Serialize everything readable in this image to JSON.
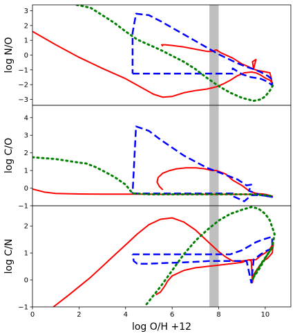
{
  "chart_data": [
    {
      "type": "line",
      "ylabel": "log N/O",
      "xlim": [
        0,
        11.1
      ],
      "ylim": [
        -3.4,
        3.4
      ],
      "yticks": [
        -3,
        -2,
        -1,
        0,
        1,
        2,
        3
      ],
      "band": {
        "x": [
          7.6,
          8.0
        ],
        "color": "#bfbfbf"
      },
      "series": [
        {
          "color": "#ff0000",
          "style": "solid",
          "x": [
            0,
            1,
            2,
            3,
            4,
            4.8,
            5.2,
            5.6,
            6.0,
            6.5,
            7.0,
            7.5,
            7.9,
            8.2,
            8.5,
            8.8,
            9.1,
            9.4,
            9.6,
            9.8,
            10.0,
            10.2,
            10.3,
            10.2,
            9.9,
            9.7,
            9.5,
            9.6,
            9.45,
            9.5,
            9.3,
            9.0,
            8.6,
            8.1,
            7.9,
            7.7,
            7.5,
            7.0,
            6.5,
            6.0,
            5.7,
            5.55,
            5.6
          ],
          "y": [
            1.6,
            0.7,
            -0.15,
            -0.9,
            -1.6,
            -2.3,
            -2.65,
            -2.85,
            -2.8,
            -2.55,
            -2.4,
            -2.3,
            -2.15,
            -1.95,
            -1.7,
            -1.4,
            -1.2,
            -1.15,
            -1.2,
            -1.35,
            -1.55,
            -1.7,
            -1.9,
            -1.2,
            -1.1,
            -1.05,
            -0.95,
            -0.3,
            -0.45,
            -0.95,
            -0.8,
            -0.6,
            -0.2,
            0.15,
            0.35,
            0.25,
            0.25,
            0.4,
            0.55,
            0.65,
            0.7,
            0.7,
            0.6
          ]
        },
        {
          "color": "#0000ff",
          "style": "dashed",
          "x": [
            4.3,
            4.35,
            4.45,
            5.0,
            6.0,
            7.0,
            8.0,
            8.6,
            8.6,
            9.0,
            9.4,
            9.8,
            10.1,
            10.3,
            10.3,
            10.1,
            9.8,
            9.5,
            9.2,
            8.8,
            8.4,
            8.0,
            7.5,
            7.0,
            6.5,
            6.0,
            5.5,
            5.0,
            4.45,
            4.3,
            4.3,
            4.3
          ],
          "y": [
            -1.25,
            -1.25,
            -1.25,
            -1.25,
            -1.25,
            -1.25,
            -1.25,
            -1.25,
            -0.9,
            -1.3,
            -1.5,
            -1.6,
            -1.8,
            -2.05,
            -1.65,
            -1.4,
            -1.15,
            -0.95,
            -0.8,
            -0.55,
            -0.25,
            0.05,
            0.5,
            0.95,
            1.4,
            1.85,
            2.3,
            2.7,
            2.8,
            1.5,
            0.0,
            -1.25
          ]
        },
        {
          "color": "#008000",
          "style": "dotted",
          "x": [
            1.9,
            2.5,
            3.0,
            3.5,
            4.0,
            4.5,
            5.0,
            5.5,
            6.0,
            6.5,
            7.0,
            7.5,
            8.0,
            8.5,
            9.0,
            9.5,
            9.8,
            10.0,
            10.2,
            10.35
          ],
          "y": [
            3.4,
            3.2,
            2.7,
            2.2,
            1.6,
            1.05,
            0.7,
            0.35,
            -0.05,
            -0.45,
            -0.95,
            -1.55,
            -2.1,
            -2.55,
            -2.9,
            -3.1,
            -3.0,
            -2.8,
            -2.4,
            -2.0
          ]
        }
      ]
    },
    {
      "type": "line",
      "ylabel": "log C/O",
      "xlim": [
        0,
        11.1
      ],
      "ylim": [
        -1.0,
        4.7
      ],
      "yticks": [
        -1,
        0,
        1,
        2,
        3,
        4
      ],
      "band": {
        "x": [
          7.6,
          8.0
        ],
        "color": "#bfbfbf"
      },
      "series": [
        {
          "color": "#ff0000",
          "style": "solid",
          "x": [
            0,
            0.5,
            1,
            2,
            3,
            4,
            4.5,
            5.0,
            5.5,
            6,
            6.5,
            7,
            7.5,
            8,
            8.5,
            9,
            9.5,
            10,
            10.3,
            10.0,
            9.6,
            9.3,
            9.0,
            8.6,
            8.3,
            7.9,
            7.7,
            7.4,
            7.0,
            6.6,
            6.2,
            5.9,
            5.6,
            5.4,
            5.35,
            5.45,
            5.6
          ],
          "y": [
            -0.05,
            -0.22,
            -0.3,
            -0.33,
            -0.34,
            -0.34,
            -0.34,
            -0.34,
            -0.35,
            -0.35,
            -0.35,
            -0.35,
            -0.35,
            -0.35,
            -0.35,
            -0.35,
            -0.35,
            -0.4,
            -0.45,
            -0.35,
            -0.3,
            -0.15,
            0.15,
            0.45,
            0.8,
            1.0,
            1.0,
            1.1,
            1.15,
            1.15,
            1.1,
            1.0,
            0.85,
            0.6,
            0.35,
            0.1,
            -0.1
          ]
        },
        {
          "color": "#0000ff",
          "style": "dashed",
          "x": [
            4.3,
            4.45,
            5.0,
            6.0,
            7.0,
            7.8,
            8.6,
            8.6,
            9.1,
            9.4,
            9.8,
            10.1,
            10.3,
            9.8,
            9.6,
            9.3,
            9.4,
            9.2,
            8.8,
            8.3,
            7.5,
            6.5,
            5.5,
            5.0,
            4.45,
            4.3
          ],
          "y": [
            -0.3,
            -0.3,
            -0.3,
            -0.3,
            -0.3,
            -0.3,
            -0.3,
            -0.45,
            -0.75,
            -0.4,
            -0.4,
            -0.45,
            -0.5,
            -0.4,
            -0.3,
            -0.15,
            0.2,
            0.15,
            0.5,
            0.75,
            1.15,
            1.85,
            2.75,
            3.25,
            3.5,
            -0.3
          ]
        },
        {
          "color": "#008000",
          "style": "dotted",
          "x": [
            0,
            0.5,
            1,
            1.5,
            2,
            2.3,
            2.7,
            3,
            3.5,
            4,
            4.3,
            5,
            6,
            7,
            8,
            9,
            9.5,
            10,
            10.3
          ],
          "y": [
            1.75,
            1.7,
            1.65,
            1.55,
            1.45,
            1.4,
            1.2,
            1.0,
            0.65,
            0.2,
            -0.3,
            -0.35,
            -0.35,
            -0.35,
            -0.35,
            -0.35,
            -0.35,
            -0.4,
            -0.45
          ]
        }
      ]
    },
    {
      "type": "line",
      "ylabel": "log C/N",
      "xlim": [
        0,
        11.1
      ],
      "ylim": [
        -1.0,
        2.75
      ],
      "yticks": [
        -1,
        0,
        1,
        2
      ],
      "band": {
        "x": [
          7.6,
          8.0
        ],
        "color": "#bfbfbf"
      },
      "series": [
        {
          "color": "#ff0000",
          "style": "solid",
          "x": [
            0.9,
            1.5,
            2.0,
            2.5,
            3.0,
            3.5,
            4.0,
            4.5,
            5.0,
            5.5,
            6.0,
            6.5,
            7.0,
            7.5,
            8.0,
            8.3,
            8.6,
            9.0,
            9.4,
            9.6,
            9.8,
            10.0,
            10.2,
            10.35,
            10.3,
            10.1,
            9.9,
            9.7,
            9.5,
            9.45,
            9.4,
            9.3,
            9.0,
            8.5,
            8.0,
            7.5,
            7.0,
            6.5,
            6.0,
            5.8,
            5.7,
            5.5,
            5.4,
            5.3
          ],
          "y": [
            -1.0,
            -0.6,
            -0.25,
            0.1,
            0.5,
            0.9,
            1.3,
            1.7,
            2.05,
            2.25,
            2.3,
            2.15,
            1.85,
            1.45,
            1.05,
            0.85,
            0.7,
            0.7,
            0.75,
            0.75,
            0.9,
            1.0,
            1.15,
            1.35,
            1.0,
            0.8,
            0.7,
            0.45,
            0.2,
            -0.1,
            0.7,
            0.75,
            0.65,
            0.6,
            0.55,
            0.5,
            0.45,
            0.35,
            0.15,
            -0.05,
            -0.2,
            -0.45,
            -0.5,
            -0.55
          ]
        },
        {
          "color": "#0000ff",
          "style": "dashed",
          "x": [
            4.3,
            4.45,
            5.0,
            6.0,
            7.0,
            7.5,
            8.0,
            8.5,
            9.0,
            9.3,
            9.6,
            9.9,
            10.1,
            10.3,
            10.3,
            10.1,
            9.8,
            9.5,
            9.4,
            9.2,
            8.8,
            8.3,
            7.6,
            6.5,
            5.5,
            5.0,
            4.5,
            4.35,
            4.3
          ],
          "y": [
            0.95,
            0.95,
            0.95,
            0.95,
            0.95,
            0.95,
            0.95,
            0.95,
            1.1,
            1.25,
            1.4,
            1.5,
            1.55,
            1.6,
            1.15,
            1.1,
            0.95,
            0.75,
            -0.1,
            0.7,
            0.7,
            0.7,
            0.7,
            0.65,
            0.62,
            0.6,
            0.6,
            0.7,
            0.95
          ]
        },
        {
          "color": "#008000",
          "style": "dotted",
          "x": [
            4.9,
            5.5,
            6.0,
            6.5,
            7.0,
            7.5,
            8.0,
            8.5,
            9.0,
            9.4,
            9.7,
            10.0,
            10.2,
            10.4,
            10.3,
            10.1,
            9.9,
            9.7,
            9.5,
            9.45,
            9.6,
            9.9,
            10.3
          ],
          "y": [
            -0.9,
            -0.25,
            0.35,
            0.95,
            1.45,
            1.85,
            2.2,
            2.45,
            2.6,
            2.7,
            2.65,
            2.45,
            2.2,
            1.7,
            1.2,
            0.95,
            0.65,
            0.35,
            0.1,
            0.0,
            0.3,
            0.7,
            1.2
          ]
        }
      ]
    }
  ],
  "xlabel": "log O/H +12",
  "xticks": [
    0,
    2,
    4,
    6,
    8,
    10
  ]
}
